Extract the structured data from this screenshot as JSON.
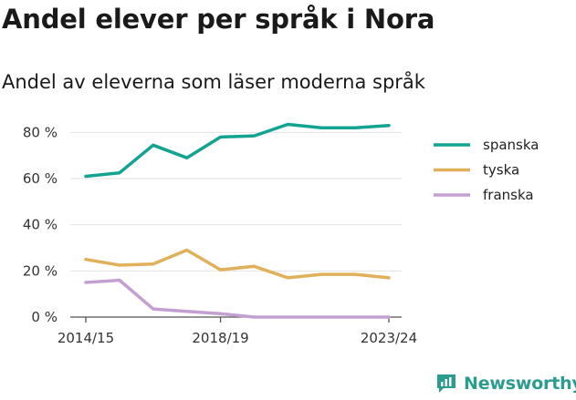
{
  "title": "Andel elever per språk i Nora",
  "subtitle": "Andel av eleverna som läser moderna språk",
  "brand": {
    "name": "Newsworthy",
    "icon": "newsworthy-logo-icon"
  },
  "chart_data": {
    "type": "line",
    "x": [
      "2014/15",
      "2015/16",
      "2016/17",
      "2017/18",
      "2018/19",
      "2019/20",
      "2020/21",
      "2021/22",
      "2022/23",
      "2023/24"
    ],
    "x_tick_labels": [
      "2014/15",
      "2018/19",
      "2023/24"
    ],
    "y_ticks": [
      0,
      20,
      40,
      60,
      80
    ],
    "y_tick_labels": [
      "0 %",
      "20 %",
      "40 %",
      "60 %",
      "80 %"
    ],
    "ylim": [
      0,
      90
    ],
    "grid": true,
    "legend_position": "right",
    "series": [
      {
        "name": "spanska",
        "color": "#13a391",
        "values": [
          61,
          62.5,
          74.5,
          69,
          78,
          78.5,
          83.5,
          82,
          82,
          83
        ]
      },
      {
        "name": "tyska",
        "color": "#e0b05a",
        "values": [
          25,
          22.5,
          23,
          29,
          20.5,
          22,
          17,
          18.5,
          18.5,
          17
        ]
      },
      {
        "name": "franska",
        "color": "#c4a0d2",
        "values": [
          15,
          16,
          3.5,
          2.5,
          1.5,
          0,
          0,
          0,
          0,
          0
        ]
      }
    ]
  }
}
